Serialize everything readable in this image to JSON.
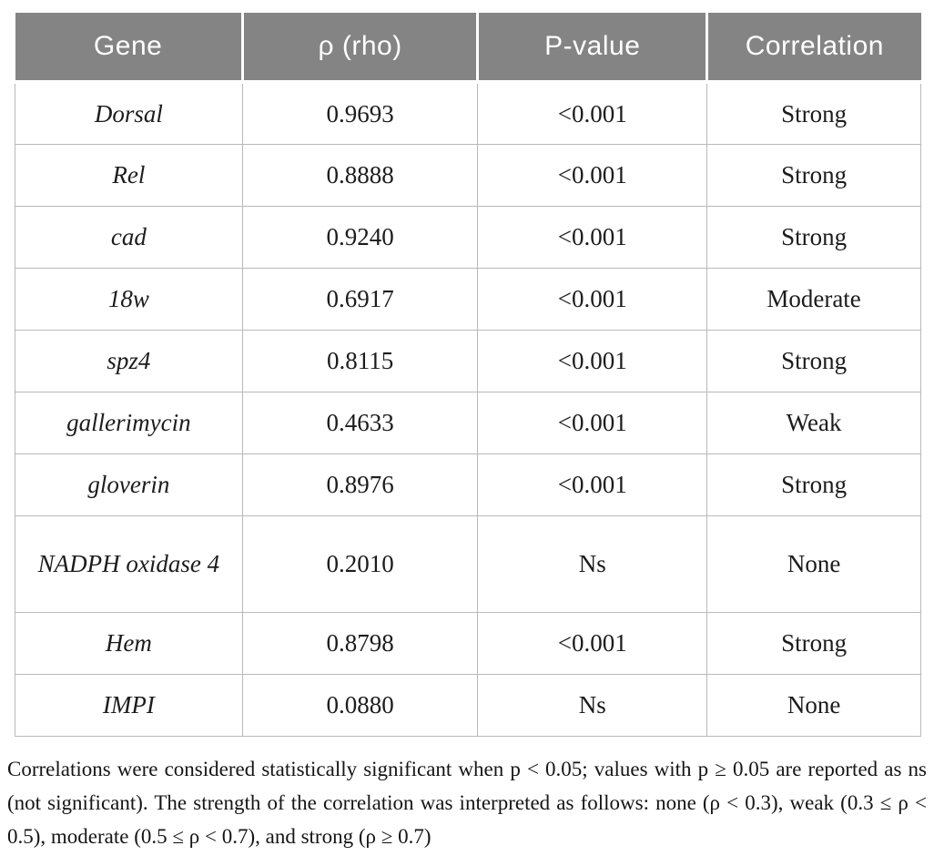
{
  "table": {
    "columns": [
      "Gene",
      "ρ (rho)",
      "P-value",
      "Correlation"
    ],
    "rows": [
      {
        "gene": "Dorsal",
        "rho": "0.9693",
        "p": "<0.001",
        "correlation": "Strong"
      },
      {
        "gene": "Rel",
        "rho": "0.8888",
        "p": "<0.001",
        "correlation": "Strong"
      },
      {
        "gene": "cad",
        "rho": "0.9240",
        "p": "<0.001",
        "correlation": "Strong"
      },
      {
        "gene": "18w",
        "rho": "0.6917",
        "p": "<0.001",
        "correlation": "Moderate"
      },
      {
        "gene": "spz4",
        "rho": "0.8115",
        "p": "<0.001",
        "correlation": "Strong"
      },
      {
        "gene": "gallerimycin",
        "rho": "0.4633",
        "p": "<0.001",
        "correlation": "Weak"
      },
      {
        "gene": "gloverin",
        "rho": "0.8976",
        "p": "<0.001",
        "correlation": "Strong"
      },
      {
        "gene": "NADPH oxidase 4",
        "rho": "0.2010",
        "p": "Ns",
        "correlation": "None"
      },
      {
        "gene": "Hem",
        "rho": "0.8798",
        "p": "<0.001",
        "correlation": "Strong"
      },
      {
        "gene": "IMPI",
        "rho": "0.0880",
        "p": "Ns",
        "correlation": "None"
      }
    ]
  },
  "footnote": {
    "text": "Correlations were considered statistically significant when p < 0.05; values with p ≥ 0.05 are reported as ns (not significant). The strength of the correlation was interpreted as follows: none (ρ < 0.3), weak (0.3 ≤ ρ < 0.5), moderate (0.5 ≤ ρ < 0.7), and strong (ρ ≥ 0.7)"
  },
  "colors": {
    "header_bg": "#848484",
    "header_text": "#ffffff",
    "body_text": "#1c1c1c",
    "border": "#b9b9b9",
    "background": "#ffffff"
  }
}
